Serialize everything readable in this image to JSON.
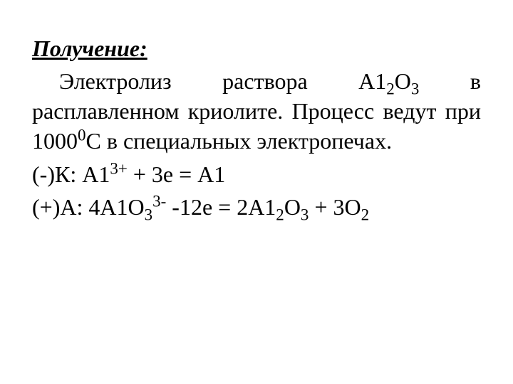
{
  "document": {
    "heading": "Получение:",
    "paragraph_parts": {
      "p1": "Электролиз раствора А1",
      "p2": "О",
      "p3": " в расплавленном криолите. Процесс ведут при 1000",
      "p4": "С в специальных электропечах."
    },
    "subscripts": {
      "two": "2",
      "three": "3"
    },
    "superscripts": {
      "zero": "0",
      "three_plus": "3+",
      "three_minus": "3-"
    },
    "cathode": {
      "prefix": "(-)К: А1",
      "suffix": " + 3е = А1"
    },
    "anode": {
      "prefix": "(+)А: 4А1О",
      "sub1": "3",
      "mid": " -12е = 2А1",
      "sub2": "2",
      "o_part": "О",
      "sub3": "3",
      "plus": " + 3О",
      "sub4": "2"
    },
    "colors": {
      "background": "#ffffff",
      "text": "#000000"
    },
    "typography": {
      "font_family": "Times New Roman",
      "heading_fontsize": 32,
      "body_fontsize": 32,
      "heading_weight": "bold",
      "heading_style": "italic underline"
    }
  }
}
